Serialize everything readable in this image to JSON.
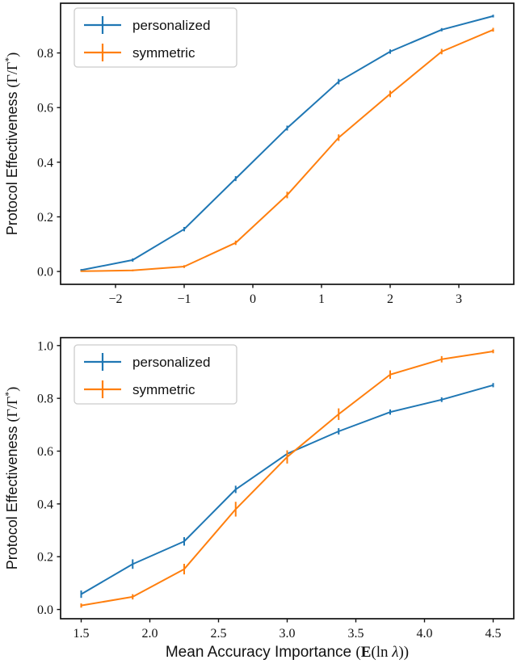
{
  "figure": {
    "background": "#ffffff",
    "text_color": "#111111",
    "axis_color": "#111111",
    "legend_border_color": "#cccccc",
    "legend_fill": "#ffffff"
  },
  "chart_data": [
    {
      "type": "line",
      "title": "",
      "ylabel": "Protocol Effectiveness (Γ/Γ*)",
      "ylabel_parts": [
        {
          "t": "Protocol Effectiveness ",
          "s": "sans"
        },
        {
          "t": "(Γ/Γ",
          "s": "serif"
        },
        {
          "t": "*",
          "s": "sup"
        },
        {
          "t": ")",
          "s": "serif"
        }
      ],
      "xlabel": "",
      "xlabel_parts": [],
      "xlim": [
        -2.8,
        3.8
      ],
      "ylim": [
        -0.047,
        0.982
      ],
      "grid": false,
      "xticks": [
        {
          "v": -2,
          "label": "−2"
        },
        {
          "v": -1,
          "label": "−1"
        },
        {
          "v": 0,
          "label": "0"
        },
        {
          "v": 1,
          "label": "1"
        },
        {
          "v": 2,
          "label": "2"
        },
        {
          "v": 3,
          "label": "3"
        }
      ],
      "yticks": [
        {
          "v": 0.0,
          "label": "0.0"
        },
        {
          "v": 0.2,
          "label": "0.2"
        },
        {
          "v": 0.4,
          "label": "0.4"
        },
        {
          "v": 0.6,
          "label": "0.6"
        },
        {
          "v": 0.8,
          "label": "0.8"
        }
      ],
      "legend": {
        "position": "upper left",
        "entries": [
          "personalized",
          "symmetric"
        ]
      },
      "x": [
        -2.5,
        -1.75,
        -1.0,
        -0.25,
        0.5,
        1.25,
        2.0,
        2.75,
        3.5
      ],
      "series": [
        {
          "name": "personalized",
          "color": "#1f77b4",
          "values": [
            0.005,
            0.042,
            0.155,
            0.34,
            0.525,
            0.695,
            0.805,
            0.885,
            0.935
          ],
          "err": [
            0.004,
            0.006,
            0.008,
            0.009,
            0.009,
            0.01,
            0.008,
            0.006,
            0.005
          ]
        },
        {
          "name": "symmetric",
          "color": "#ff7f0e",
          "values": [
            0.001,
            0.004,
            0.018,
            0.105,
            0.28,
            0.49,
            0.65,
            0.805,
            0.885
          ],
          "err": [
            0.002,
            0.003,
            0.005,
            0.008,
            0.012,
            0.012,
            0.012,
            0.01,
            0.007
          ]
        }
      ]
    },
    {
      "type": "line",
      "title": "",
      "ylabel": "Protocol Effectiveness (Γ/Γ*)",
      "ylabel_parts": [
        {
          "t": "Protocol Effectiveness ",
          "s": "sans"
        },
        {
          "t": "(Γ/Γ",
          "s": "serif"
        },
        {
          "t": "*",
          "s": "sup"
        },
        {
          "t": ")",
          "s": "serif"
        }
      ],
      "xlabel": "Mean Accuracy Importance (E(ln λ))",
      "xlabel_parts": [
        {
          "t": "Mean Accuracy Importance ",
          "s": "sans"
        },
        {
          "t": "(",
          "s": "serif"
        },
        {
          "t": "E",
          "s": "serif-b"
        },
        {
          "t": "(ln ",
          "s": "serif"
        },
        {
          "t": "λ",
          "s": "serif-i"
        },
        {
          "t": "))",
          "s": "serif"
        }
      ],
      "xlim": [
        1.35,
        4.65
      ],
      "ylim": [
        -0.035,
        1.03
      ],
      "grid": false,
      "xticks": [
        {
          "v": 1.5,
          "label": "1.5"
        },
        {
          "v": 2.0,
          "label": "2.0"
        },
        {
          "v": 2.5,
          "label": "2.5"
        },
        {
          "v": 3.0,
          "label": "3.0"
        },
        {
          "v": 3.5,
          "label": "3.5"
        },
        {
          "v": 4.0,
          "label": "4.0"
        },
        {
          "v": 4.5,
          "label": "4.5"
        }
      ],
      "yticks": [
        {
          "v": 0.0,
          "label": "0.0"
        },
        {
          "v": 0.2,
          "label": "0.2"
        },
        {
          "v": 0.4,
          "label": "0.4"
        },
        {
          "v": 0.6,
          "label": "0.6"
        },
        {
          "v": 0.8,
          "label": "0.8"
        },
        {
          "v": 1.0,
          "label": "1.0"
        }
      ],
      "legend": {
        "position": "upper left",
        "entries": [
          "personalized",
          "symmetric"
        ]
      },
      "x": [
        1.5,
        1.875,
        2.25,
        2.625,
        3.0,
        3.375,
        3.75,
        4.125,
        4.5
      ],
      "series": [
        {
          "name": "personalized",
          "color": "#1f77b4",
          "values": [
            0.058,
            0.172,
            0.258,
            0.455,
            0.59,
            0.675,
            0.748,
            0.795,
            0.85
          ],
          "err": [
            0.014,
            0.018,
            0.016,
            0.014,
            0.012,
            0.012,
            0.01,
            0.009,
            0.008
          ]
        },
        {
          "name": "symmetric",
          "color": "#ff7f0e",
          "values": [
            0.015,
            0.048,
            0.153,
            0.38,
            0.578,
            0.74,
            0.89,
            0.948,
            0.978
          ],
          "err": [
            0.008,
            0.01,
            0.02,
            0.028,
            0.025,
            0.022,
            0.016,
            0.012,
            0.007
          ]
        }
      ]
    }
  ]
}
